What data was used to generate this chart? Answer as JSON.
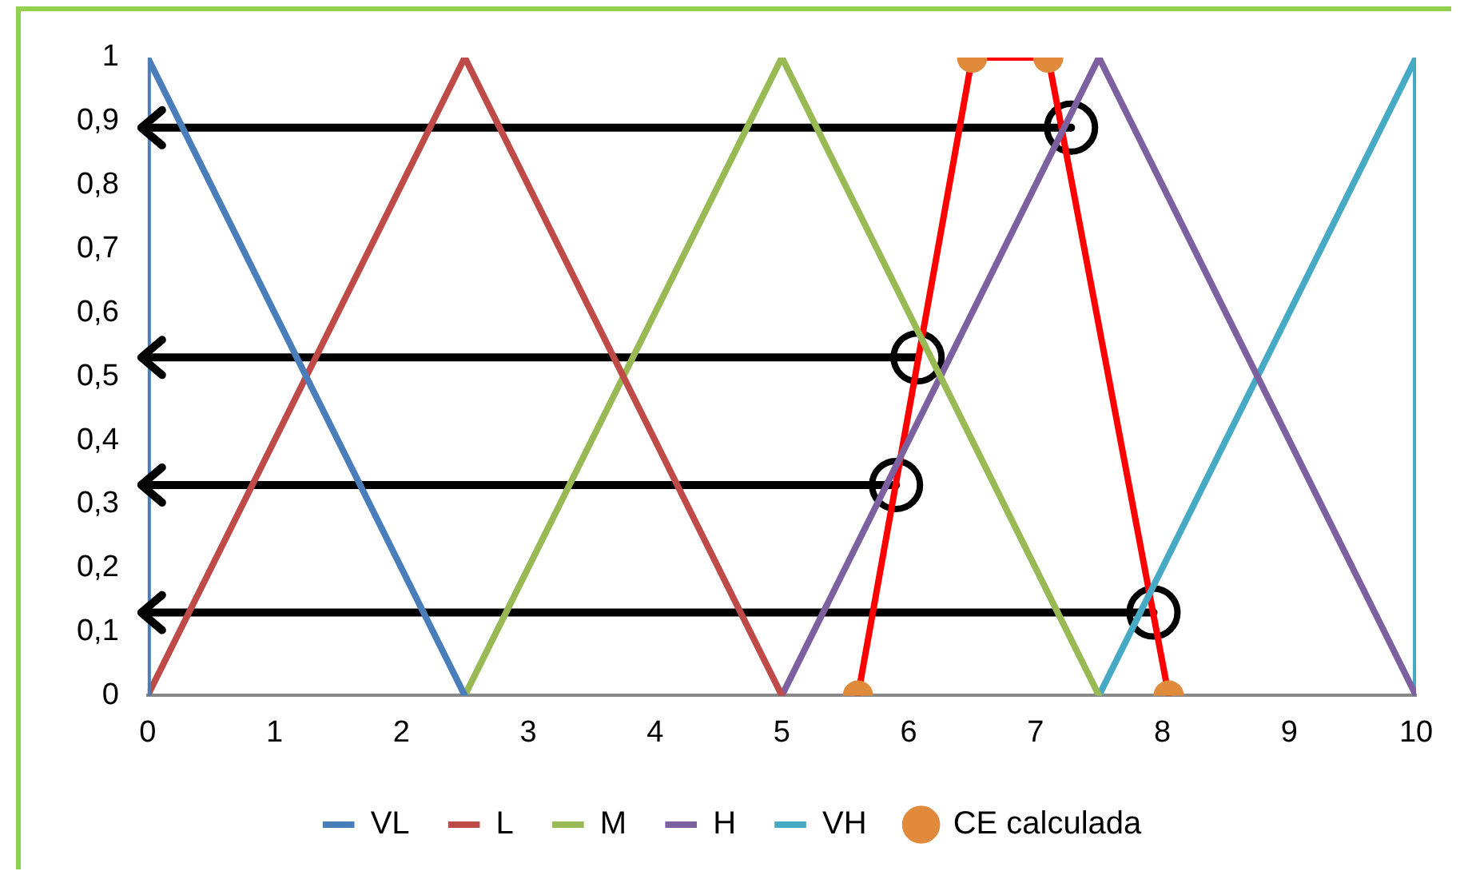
{
  "chart_data": {
    "type": "line",
    "xlim": [
      0,
      10
    ],
    "xticks": [
      0,
      1,
      2,
      3,
      4,
      5,
      6,
      7,
      8,
      9,
      10
    ],
    "ylim": [
      0,
      1
    ],
    "yticks": [
      0,
      {
        "value": 0.1,
        "label": "0,1"
      },
      {
        "value": 0.2,
        "label": "0,2"
      },
      {
        "value": 0.3,
        "label": "0,3"
      },
      {
        "value": 0.4,
        "label": "0,4"
      },
      {
        "value": 0.5,
        "label": "0,5"
      },
      {
        "value": 0.6,
        "label": "0,6"
      },
      {
        "value": 0.7,
        "label": "0,7"
      },
      {
        "value": 0.8,
        "label": "0,8"
      },
      {
        "value": 0.9,
        "label": "0,9"
      },
      1
    ],
    "grid": false,
    "legend": "bottom",
    "marker": "none",
    "line_style": "solid",
    "series": [
      {
        "name": "VL",
        "color": "#4a7ebb",
        "x": [
          0,
          0,
          2.5
        ],
        "values": [
          0,
          1,
          0
        ]
      },
      {
        "name": "L",
        "color": "#be4b48",
        "x": [
          0,
          2.5,
          5
        ],
        "values": [
          0,
          1,
          0
        ]
      },
      {
        "name": "M",
        "color": "#98b954",
        "x": [
          2.5,
          5,
          7.5
        ],
        "values": [
          0,
          1,
          0
        ]
      },
      {
        "name": "H",
        "color": "#7d60a0",
        "x": [
          5,
          7.5,
          10
        ],
        "values": [
          0,
          1,
          0
        ]
      },
      {
        "name": "VH",
        "color": "#46aac5",
        "x": [
          7.5,
          10,
          10
        ],
        "values": [
          0,
          1,
          0
        ]
      },
      {
        "name": "CE calculada",
        "color": "#ff0000",
        "marker": "circle",
        "colors": [
          "#e08b3c",
          "#e08b3c",
          "#e08b3c",
          "#e08b3c"
        ],
        "x": [
          5.6,
          6.5,
          7.1,
          8.05
        ],
        "values": [
          0,
          1,
          1,
          0
        ]
      },
      {
        "color": "#000000",
        "marker": "circle",
        "x": [
          7.28,
          0
        ],
        "values": [
          0.89,
          0.89
        ]
      },
      {
        "color": "#000000",
        "marker": "circle",
        "x": [
          6.07,
          0
        ],
        "values": [
          0.53,
          0.53
        ]
      },
      {
        "color": "#000000",
        "marker": "circle",
        "x": [
          5.9,
          0
        ],
        "values": [
          0.33,
          0.33
        ]
      },
      {
        "color": "#000000",
        "marker": "circle",
        "x": [
          7.93,
          0
        ],
        "values": [
          0.13,
          0.13
        ]
      }
    ]
  }
}
